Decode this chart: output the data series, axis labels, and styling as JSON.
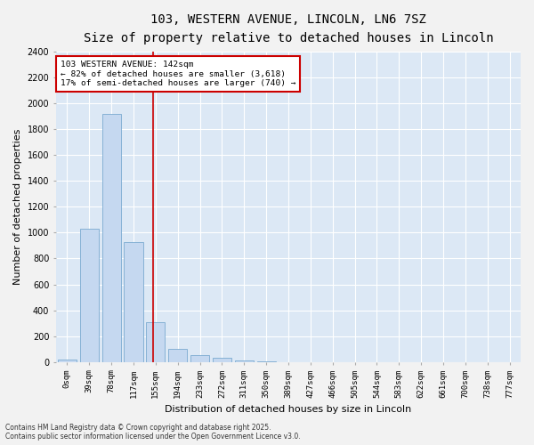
{
  "title_line1": "103, WESTERN AVENUE, LINCOLN, LN6 7SZ",
  "title_line2": "Size of property relative to detached houses in Lincoln",
  "xlabel": "Distribution of detached houses by size in Lincoln",
  "ylabel": "Number of detached properties",
  "bar_color": "#c5d8f0",
  "bar_edge_color": "#7aaad0",
  "background_color": "#dce8f5",
  "grid_color": "#ffffff",
  "annotation_text": "103 WESTERN AVENUE: 142sqm\n← 82% of detached houses are smaller (3,618)\n17% of semi-detached houses are larger (740) →",
  "annotation_box_color": "#ffffff",
  "annotation_border_color": "#cc0000",
  "red_line_x": 3.87,
  "categories": [
    "0sqm",
    "39sqm",
    "78sqm",
    "117sqm",
    "155sqm",
    "194sqm",
    "233sqm",
    "272sqm",
    "311sqm",
    "350sqm",
    "389sqm",
    "427sqm",
    "466sqm",
    "505sqm",
    "544sqm",
    "583sqm",
    "622sqm",
    "661sqm",
    "700sqm",
    "738sqm",
    "777sqm"
  ],
  "values": [
    20,
    1030,
    1920,
    930,
    310,
    105,
    55,
    30,
    15,
    3,
    0,
    0,
    0,
    0,
    0,
    0,
    0,
    0,
    0,
    0,
    0
  ],
  "ylim": [
    0,
    2400
  ],
  "yticks": [
    0,
    200,
    400,
    600,
    800,
    1000,
    1200,
    1400,
    1600,
    1800,
    2000,
    2200,
    2400
  ],
  "footnote": "Contains HM Land Registry data © Crown copyright and database right 2025.\nContains public sector information licensed under the Open Government Licence v3.0.",
  "title_fontsize": 10,
  "subtitle_fontsize": 9,
  "tick_fontsize": 6.5,
  "ylabel_fontsize": 8,
  "xlabel_fontsize": 8,
  "fig_bg": "#f2f2f2"
}
